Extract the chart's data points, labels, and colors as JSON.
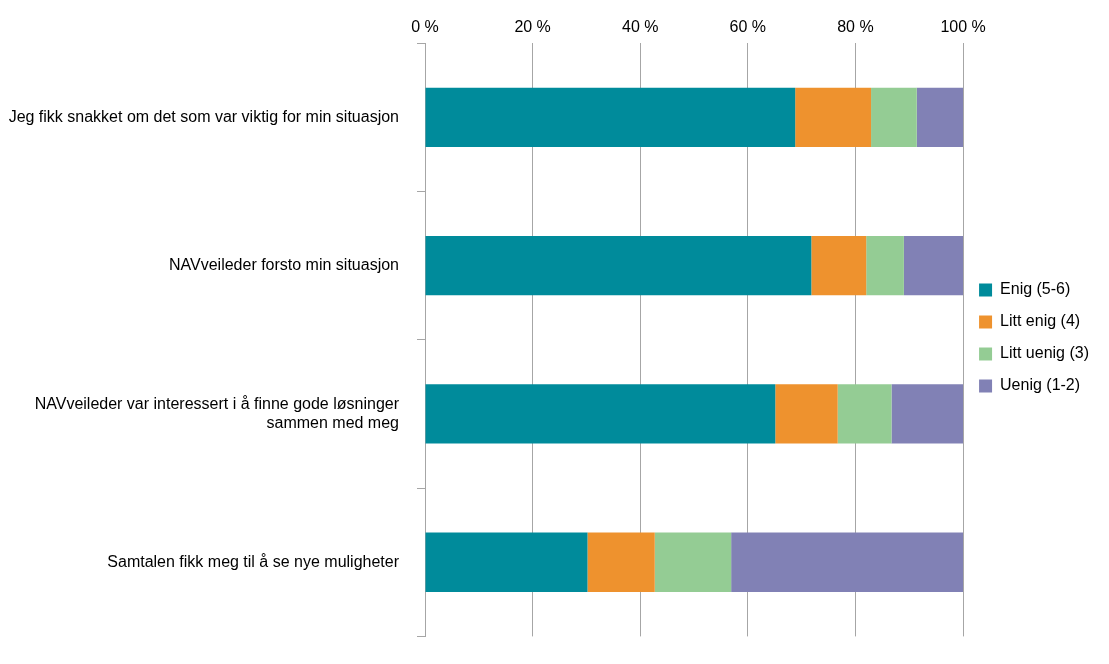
{
  "chart_data": {
    "type": "bar",
    "orientation": "horizontal",
    "stacked": true,
    "categories": [
      "Jeg fikk snakket om det som var viktig for min situasjon",
      "NAVveileder forsto min situasjon",
      "NAVveileder var interessert i å finne gode løsninger sammen med meg",
      "Samtalen fikk meg til å se nye muligheter"
    ],
    "series": [
      {
        "name": "Enig (5-6)",
        "color": "#008b9b",
        "values": [
          68.8,
          71.8,
          65.1,
          30.2
        ]
      },
      {
        "name": "Litt enig (4)",
        "color": "#ee922e",
        "values": [
          14.1,
          10.2,
          11.6,
          12.5
        ]
      },
      {
        "name": "Litt uenig (3)",
        "color": "#94cc94",
        "values": [
          8.5,
          7.0,
          10.0,
          14.2
        ]
      },
      {
        "name": "Uenig (1-2)",
        "color": "#8181b5",
        "values": [
          8.6,
          11.0,
          13.3,
          43.1
        ]
      }
    ],
    "xlim": [
      0,
      100
    ],
    "xticks": [
      {
        "value": 0,
        "label": "0 %"
      },
      {
        "value": 20,
        "label": "20 %"
      },
      {
        "value": 40,
        "label": "40 %"
      },
      {
        "value": 60,
        "label": "60 %"
      },
      {
        "value": 80,
        "label": "80 %"
      },
      {
        "value": 100,
        "label": "100 %"
      }
    ],
    "grid": "x",
    "legend": "right"
  }
}
